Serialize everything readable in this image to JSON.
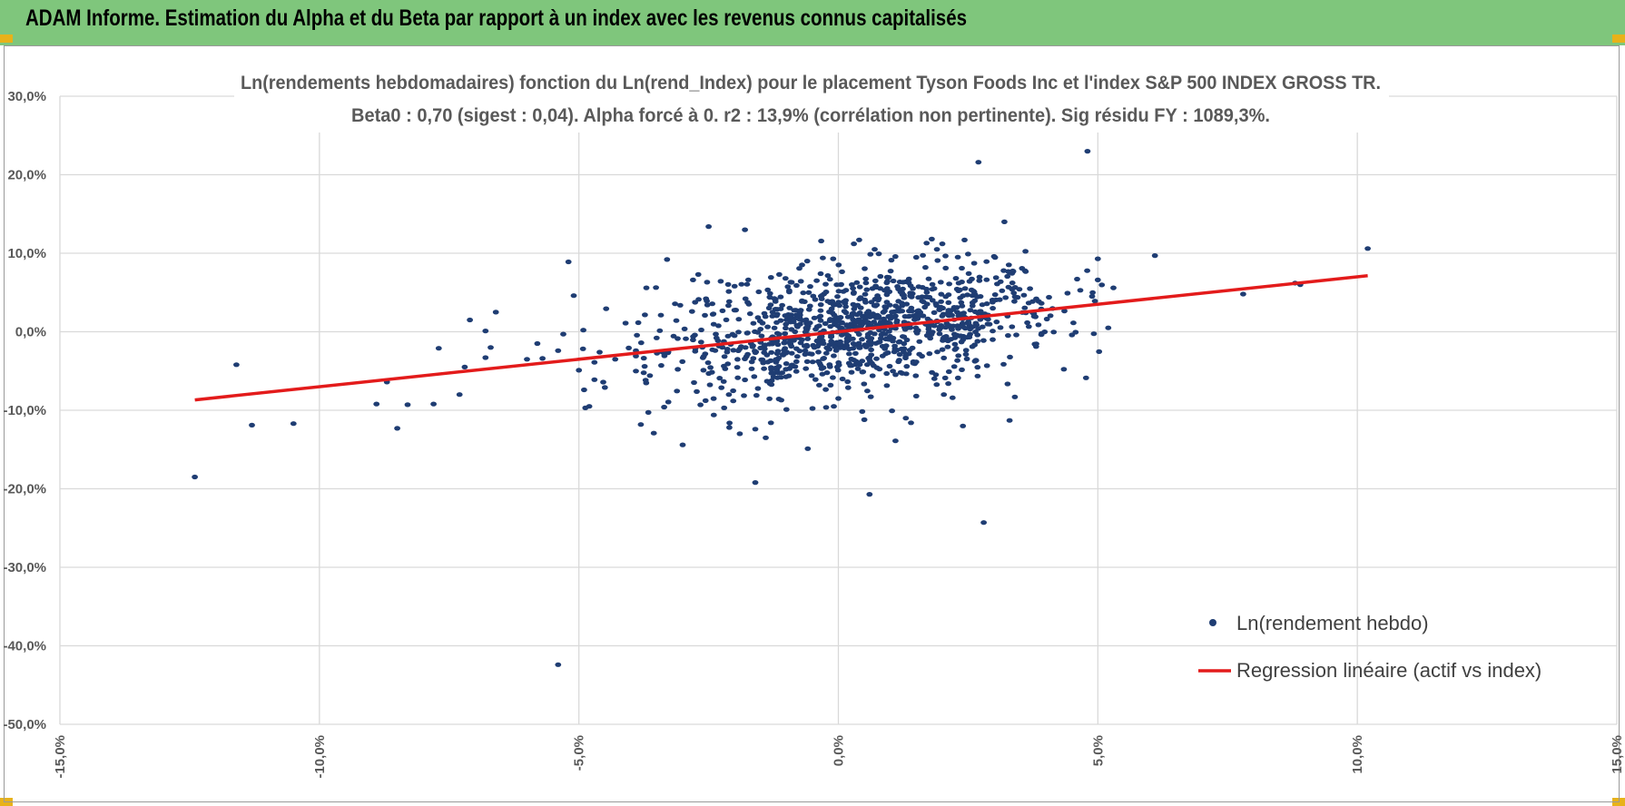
{
  "header": {
    "title": "ADAM Informe. Estimation du Alpha et du Beta par rapport à un index avec les revenus connus capitalisés"
  },
  "colors": {
    "header_bg": "#7fc67c",
    "corner_accent": "#e8b21a",
    "points": "#1f3d73",
    "regression_line": "#e31b1b",
    "grid": "#d9d9d9",
    "axis_text": "#595959"
  },
  "chart_data": {
    "type": "scatter",
    "title": "Ln(rendements hebdomadaires) fonction du Ln(rend_Index) pour le placement Tyson Foods Inc et l'index S&P 500 INDEX GROSS TR.",
    "subtitle": "Beta0 : 0,70 (sigest : 0,04).  Alpha forcé à 0. r2 : 13,9% (corrélation non pertinente). Sig résidu FY : 1089,3%.",
    "xlabel": "",
    "ylabel": "",
    "xlim": [
      -15,
      15
    ],
    "ylim": [
      -50,
      30
    ],
    "x_ticks": [
      "-15,0%",
      "-10,0%",
      "-5,0%",
      "0,0%",
      "5,0%",
      "10,0%",
      "15,0%"
    ],
    "y_ticks": [
      "30,0%",
      "20,0%",
      "10,0%",
      "0,0%",
      "-10,0%",
      "-20,0%",
      "-30,0%",
      "-40,0%",
      "-50,0%"
    ],
    "grid": true,
    "legend_position": "bottom-right",
    "series": [
      {
        "name": "Ln(rendement hebdo)",
        "kind": "points",
        "points": [
          [
            -12.4,
            -18.5
          ],
          [
            -11.6,
            -4.2
          ],
          [
            -11.3,
            -11.9
          ],
          [
            -10.5,
            -11.7
          ],
          [
            -8.9,
            -9.2
          ],
          [
            -8.7,
            -6.4
          ],
          [
            -8.5,
            -12.3
          ],
          [
            -8.3,
            -9.3
          ],
          [
            -7.8,
            -9.2
          ],
          [
            -7.7,
            -2.1
          ],
          [
            -7.3,
            -8.0
          ],
          [
            -7.2,
            -4.5
          ],
          [
            -7.1,
            1.5
          ],
          [
            -6.8,
            -3.3
          ],
          [
            -6.8,
            0.1
          ],
          [
            -6.7,
            -2.0
          ],
          [
            -6.6,
            2.5
          ],
          [
            -6.0,
            -3.5
          ],
          [
            -5.8,
            -1.5
          ],
          [
            -5.7,
            -3.4
          ],
          [
            -5.4,
            -2.4
          ],
          [
            -5.3,
            -0.3
          ],
          [
            -5.2,
            8.9
          ],
          [
            -5.1,
            4.6
          ],
          [
            -5.4,
            -42.4
          ],
          [
            -5.0,
            -4.9
          ],
          [
            -4.9,
            -7.4
          ],
          [
            -4.8,
            -9.5
          ],
          [
            -4.7,
            -6.1
          ],
          [
            -4.7,
            -3.9
          ],
          [
            -4.6,
            -2.6
          ],
          [
            -4.5,
            -7.1
          ],
          [
            -4.3,
            -3.5
          ],
          [
            -4.1,
            1.1
          ],
          [
            -3.9,
            -5.0
          ],
          [
            -3.9,
            -3.1
          ],
          [
            -3.8,
            -1.4
          ],
          [
            -3.7,
            5.6
          ],
          [
            -3.3,
            9.2
          ],
          [
            -3.0,
            -14.4
          ],
          [
            -2.8,
            6.6
          ],
          [
            -2.7,
            7.3
          ],
          [
            -2.6,
            -4.9
          ],
          [
            -2.5,
            13.4
          ],
          [
            -2.4,
            -10.6
          ],
          [
            -2.2,
            -9.7
          ],
          [
            -2.1,
            -12.2
          ],
          [
            -2.0,
            5.8
          ],
          [
            -1.9,
            -13.0
          ],
          [
            -1.8,
            13.0
          ],
          [
            -1.6,
            -12.4
          ],
          [
            -1.6,
            -19.2
          ],
          [
            -1.4,
            -13.5
          ],
          [
            -1.3,
            -11.6
          ],
          [
            -1.1,
            -8.7
          ],
          [
            -1.0,
            -9.9
          ],
          [
            -0.9,
            6.3
          ],
          [
            -0.6,
            9.0
          ],
          [
            -0.3,
            9.4
          ],
          [
            -0.1,
            9.3
          ],
          [
            0.0,
            -8.5
          ],
          [
            0.3,
            11.2
          ],
          [
            0.4,
            11.7
          ],
          [
            0.5,
            -11.2
          ],
          [
            0.6,
            -20.7
          ],
          [
            0.7,
            10.5
          ],
          [
            1.1,
            -13.9
          ],
          [
            1.3,
            -11.0
          ],
          [
            1.4,
            -11.6
          ],
          [
            1.5,
            -8.2
          ],
          [
            1.7,
            11.3
          ],
          [
            1.8,
            11.8
          ],
          [
            1.9,
            10.5
          ],
          [
            2.2,
            -8.4
          ],
          [
            2.4,
            -12.0
          ],
          [
            2.5,
            9.9
          ],
          [
            2.7,
            21.6
          ],
          [
            2.8,
            -24.3
          ],
          [
            3.0,
            9.6
          ],
          [
            3.2,
            14.0
          ],
          [
            3.3,
            -11.3
          ],
          [
            3.4,
            -8.3
          ],
          [
            4.5,
            -0.4
          ],
          [
            4.6,
            6.7
          ],
          [
            4.8,
            23.0
          ],
          [
            4.9,
            5.0
          ],
          [
            5.0,
            6.6
          ],
          [
            5.0,
            9.3
          ],
          [
            5.2,
            0.5
          ],
          [
            5.3,
            5.6
          ],
          [
            6.1,
            9.7
          ],
          [
            7.8,
            4.8
          ],
          [
            8.8,
            6.2
          ],
          [
            8.9,
            6.0
          ],
          [
            10.2,
            10.6
          ]
        ],
        "cloud": {
          "count": 1100,
          "x_center": 0.5,
          "x_spread": 1.9,
          "y_spread": 3.6,
          "x_range": [
            -5,
            5.5
          ]
        }
      },
      {
        "name": "Regression linéaire (actif vs index)",
        "kind": "line",
        "x": [
          -12.4,
          10.2
        ],
        "y": [
          -8.68,
          7.14
        ]
      }
    ]
  }
}
